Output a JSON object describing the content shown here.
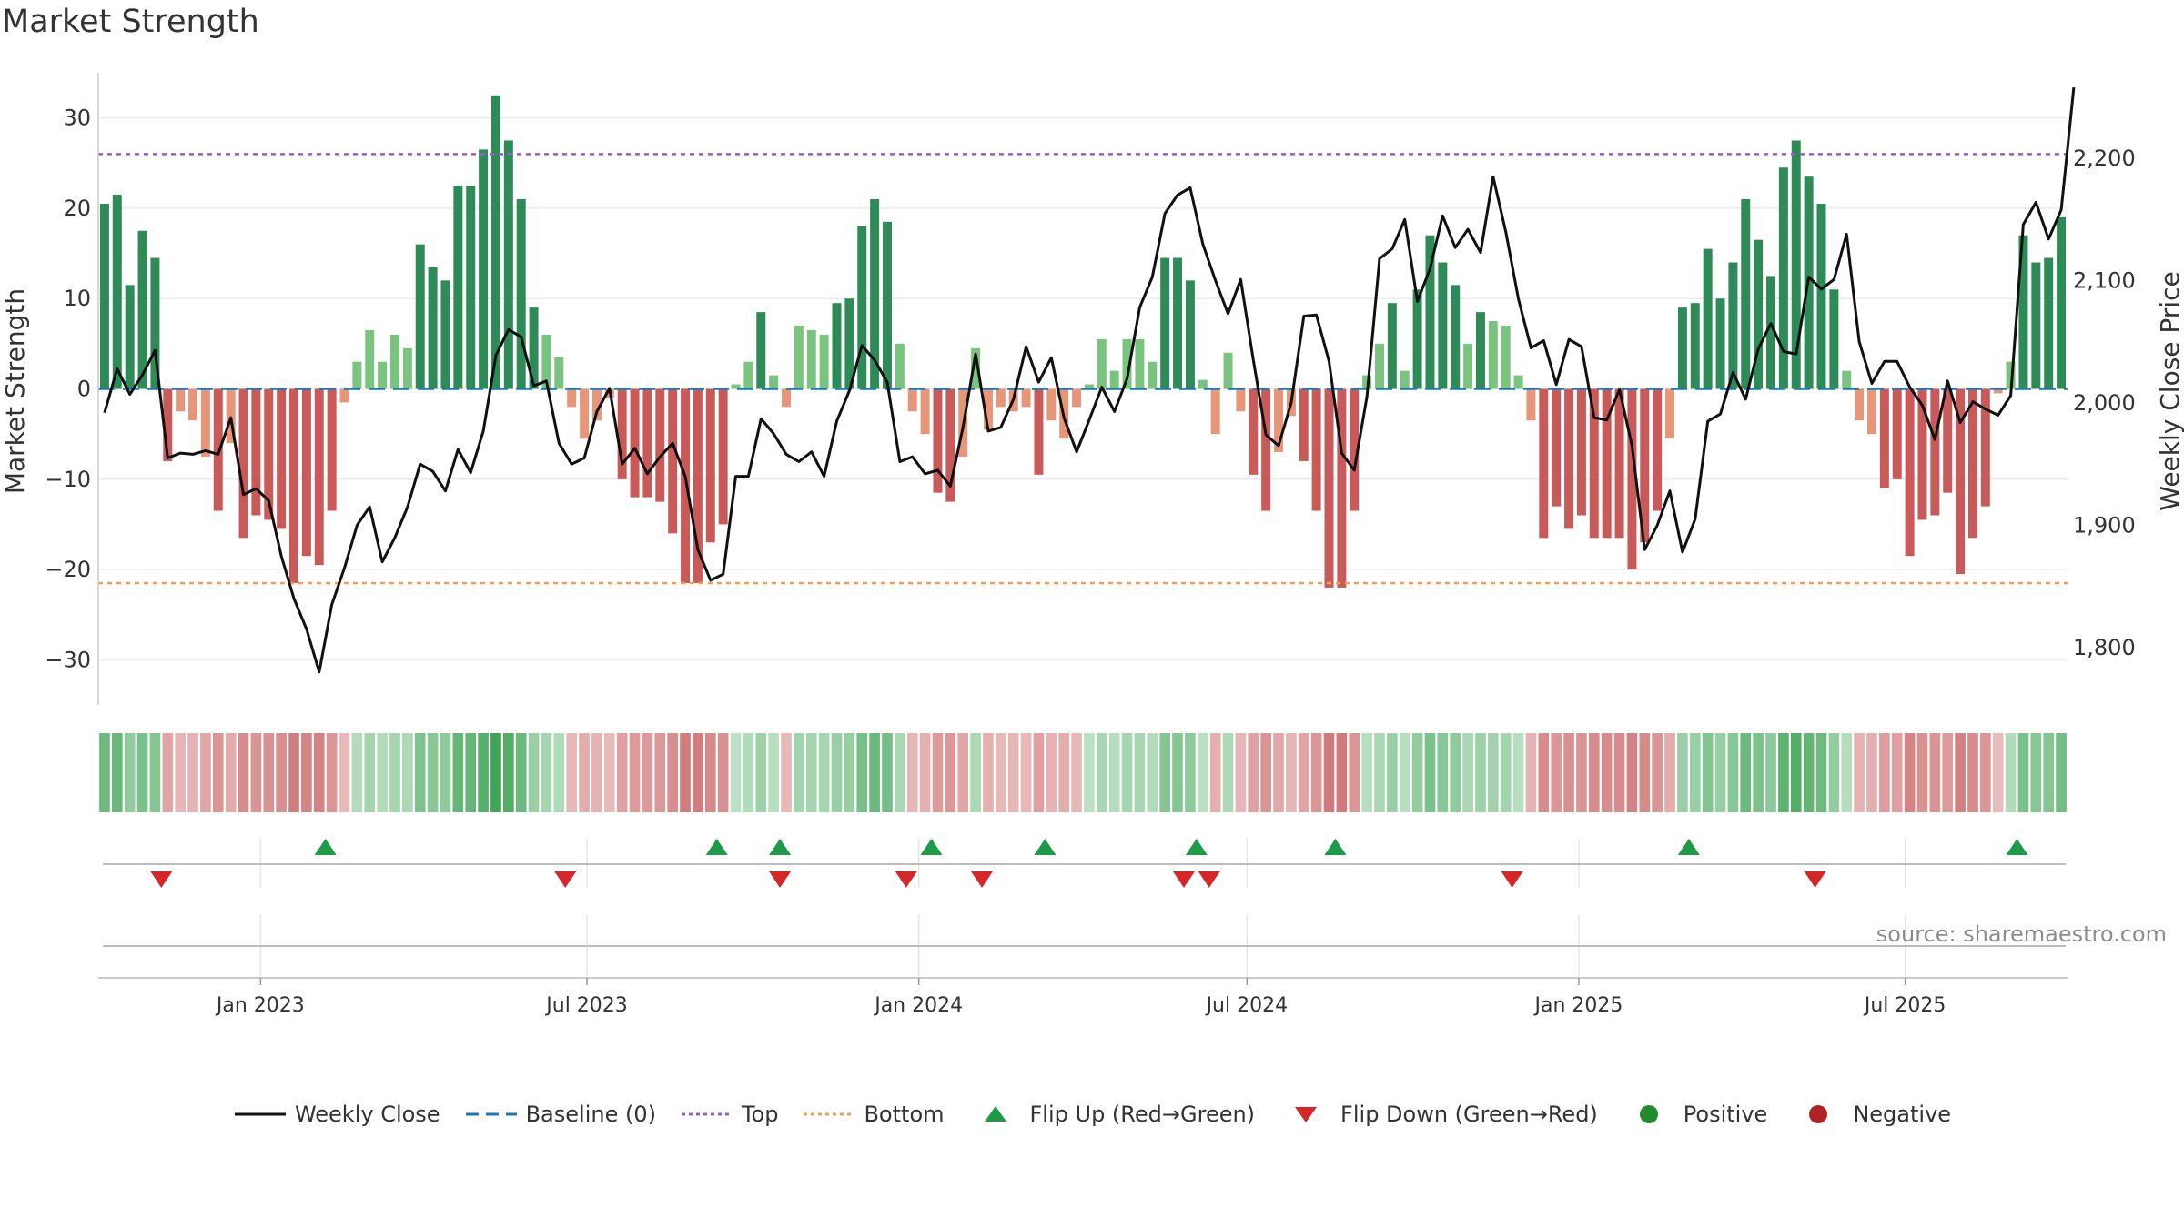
{
  "chart_data": {
    "type": "bar+line",
    "title": "Market Strength",
    "ylabel_left": "Market Strength",
    "ylabel_right": "Weekly Close Price",
    "left_axis": {
      "min": -35,
      "max": 35,
      "ticks": [
        30,
        20,
        10,
        0,
        -10,
        -20,
        -30
      ],
      "tick_labels": [
        "30",
        "20",
        "10",
        "0",
        "−10",
        "−20",
        "−30"
      ]
    },
    "right_axis": {
      "min": 1753,
      "max": 2270,
      "ticks": [
        2200,
        2100,
        2000,
        1900,
        1800
      ],
      "tick_labels": [
        "2,200",
        "2,100",
        "2,000",
        "1,900",
        "1,800"
      ]
    },
    "x_start": "2022-10-03",
    "x_end": "2025-09-29",
    "x_ticks": [
      {
        "label": "Jan 2023",
        "date": "2023-01-01"
      },
      {
        "label": "Jul 2023",
        "date": "2023-07-01"
      },
      {
        "label": "Jan 2024",
        "date": "2024-01-01"
      },
      {
        "label": "Jul 2024",
        "date": "2024-07-01"
      },
      {
        "label": "Jan 2025",
        "date": "2025-01-01"
      },
      {
        "label": "Jul 2025",
        "date": "2025-07-01"
      }
    ],
    "top_threshold": 26,
    "bottom_threshold": -21.5,
    "strength": [
      20.5,
      21.5,
      11.5,
      17.5,
      14.5,
      -8,
      -2.5,
      -3.5,
      -7.5,
      -13.5,
      -6,
      -16.5,
      -14,
      -14.5,
      -15.5,
      -21.5,
      -18.5,
      -19.5,
      -13.5,
      -1.5,
      3,
      6.5,
      3,
      6,
      4.5,
      16,
      13.5,
      12,
      22.5,
      22.5,
      26.5,
      32.5,
      27.5,
      21,
      9,
      6,
      3.5,
      -2,
      -5.5,
      -3.5,
      -1,
      -10,
      -12,
      -12,
      -12.5,
      -16,
      -21.5,
      -21.5,
      -17,
      -15,
      0.5,
      3,
      8.5,
      1.5,
      -2,
      7,
      6.5,
      6,
      9.5,
      10,
      18,
      21,
      18.5,
      5,
      -2.5,
      -5,
      -11.5,
      -12.5,
      -7.5,
      4.5,
      -4.5,
      -2,
      -2.5,
      -2,
      -9.5,
      -3.5,
      -5.5,
      -2,
      0.5,
      5.5,
      2,
      5.5,
      5.5,
      3,
      14.5,
      14.5,
      12,
      1,
      -5,
      4,
      -2.5,
      -9.5,
      -13.5,
      -7,
      -3,
      -8,
      -13.5,
      -22,
      -22,
      -13.5,
      1.5,
      5,
      9.5,
      2,
      11,
      17,
      14,
      11.5,
      5,
      8.5,
      7.5,
      7,
      1.5,
      -3.5,
      -16.5,
      -13,
      -15.5,
      -14,
      -16.5,
      -16.5,
      -16.5,
      -20,
      -17,
      -13.5,
      -5.5,
      9,
      9.5,
      15.5,
      10,
      14,
      21,
      16.5,
      12.5,
      24.5,
      27.5,
      23.5,
      20.5,
      11,
      2,
      -3.5,
      -5,
      -11,
      -10,
      -18.5,
      -14.5,
      -14,
      -11.5,
      -20.5,
      -16.5,
      -13,
      -0.5,
      3,
      17,
      14,
      14.5,
      19
    ],
    "weekly_close": [
      1992,
      2028,
      2007,
      2023,
      2043,
      1955,
      1959,
      1958,
      1961,
      1958,
      1988,
      1925,
      1930,
      1920,
      1875,
      1840,
      1815,
      1780,
      1835,
      1865,
      1900,
      1915,
      1870,
      1890,
      1915,
      1950,
      1944,
      1928,
      1962,
      1943,
      1977,
      2039,
      2060,
      2054,
      2014,
      2018,
      1967,
      1950,
      1955,
      1993,
      2012,
      1950,
      1963,
      1942,
      1956,
      1967,
      1940,
      1880,
      1855,
      1860,
      1940,
      1940,
      1987,
      1975,
      1958,
      1952,
      1960,
      1940,
      1985,
      2010,
      2047,
      2035,
      2017,
      1952,
      1956,
      1942,
      1945,
      1932,
      1980,
      2040,
      1977,
      1980,
      2003,
      2046,
      2017,
      2037,
      1988,
      1960,
      1986,
      2013,
      1993,
      2020,
      2078,
      2103,
      2155,
      2170,
      2176,
      2130,
      2100,
      2073,
      2101,
      2035,
      1974,
      1965,
      2000,
      2071,
      2072,
      2034,
      1959,
      1945,
      2005,
      2118,
      2126,
      2150,
      2083,
      2110,
      2153,
      2127,
      2142,
      2123,
      2185,
      2140,
      2085,
      2045,
      2051,
      2015,
      2052,
      2046,
      1988,
      1986,
      2011,
      1965,
      1880,
      1900,
      1928,
      1878,
      1905,
      1985,
      1991,
      2025,
      2003,
      2044,
      2065,
      2042,
      2040,
      2103,
      2093,
      2101,
      2138,
      2050,
      2016,
      2034,
      2034,
      2013,
      1998,
      1970,
      2018,
      1984,
      2001,
      1995,
      1990,
      2006,
      2146,
      2164,
      2134,
      2158,
      2258
    ],
    "flip_up_dates": [
      "2023-02-06",
      "2023-09-11",
      "2023-10-16",
      "2024-01-08",
      "2024-03-11",
      "2024-06-03",
      "2024-08-19",
      "2025-03-03",
      "2025-09-01"
    ],
    "flip_down_dates": [
      "2022-11-07",
      "2023-06-19",
      "2023-10-16",
      "2023-12-25",
      "2024-02-05",
      "2024-05-27",
      "2024-06-10",
      "2024-11-25",
      "2025-05-12"
    ],
    "colors": {
      "dark_green": "#2e8b57",
      "light_green": "#7bc47f",
      "dark_red": "#c95a5a",
      "light_red": "#e8967a",
      "price_line": "#111111",
      "baseline": "#1f77b4",
      "top_line": "#9b59d0",
      "bottom_line": "#f0a050",
      "flip_up": "#1f9a48",
      "flip_down": "#d62728",
      "positive": "#238b2e",
      "negative": "#b22222"
    }
  },
  "watermark": "source: sharemaestro.com",
  "legend": [
    {
      "key": "weekly_close",
      "label": "Weekly Close",
      "symbol": "line-solid",
      "color": "#111111"
    },
    {
      "key": "baseline",
      "label": "Baseline (0)",
      "symbol": "line-dash",
      "color": "#1f77b4"
    },
    {
      "key": "top",
      "label": "Top",
      "symbol": "line-dot",
      "color": "#9b59d0"
    },
    {
      "key": "bottom",
      "label": "Bottom",
      "symbol": "line-dot",
      "color": "#f0a050"
    },
    {
      "key": "flip_up",
      "label": "Flip Up (Red→Green)",
      "symbol": "triangle-up",
      "color": "#1f9a48"
    },
    {
      "key": "flip_down",
      "label": "Flip Down (Green→Red)",
      "symbol": "triangle-down",
      "color": "#d62728"
    },
    {
      "key": "positive",
      "label": "Positive",
      "symbol": "circle",
      "color": "#238b2e"
    },
    {
      "key": "negative",
      "label": "Negative",
      "symbol": "circle",
      "color": "#b22222"
    }
  ]
}
